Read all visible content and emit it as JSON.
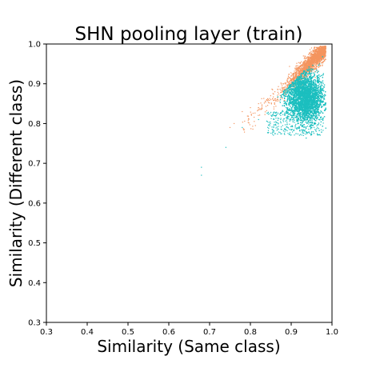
{
  "chart_data": {
    "type": "scatter",
    "title": "SHN pooling layer  (train)",
    "xlabel": "Similarity (Same class)",
    "ylabel": "Similarity (Different class)",
    "xlim": [
      0.3,
      1.0
    ],
    "ylim": [
      0.3,
      1.0
    ],
    "xticks": [
      "0.3",
      "0.4",
      "0.5",
      "0.6",
      "0.7",
      "0.8",
      "0.9",
      "1.0"
    ],
    "yticks": [
      "0.3",
      "0.4",
      "0.5",
      "0.6",
      "0.7",
      "0.8",
      "0.9",
      "1.0"
    ],
    "grid": false,
    "colors": {
      "series_orange": "#f4955f",
      "series_cyan": "#1cbfbf"
    },
    "series": [
      {
        "color": "#f4955f",
        "cluster": {
          "description_points": "dense band along diagonal y≈x from about x=0.84 to x=0.98; outliers near (0.75,0.79),(0.77,0.80),(0.78,0.83),(0.80,0.84)",
          "x_range": [
            0.74,
            0.99
          ],
          "y_range": [
            0.78,
            0.99
          ]
        },
        "values": [
          [
            0.75,
            0.79
          ],
          [
            0.76,
            0.8
          ],
          [
            0.78,
            0.83
          ],
          [
            0.8,
            0.84
          ],
          [
            0.82,
            0.85
          ],
          [
            0.84,
            0.86
          ],
          [
            0.86,
            0.88
          ],
          [
            0.88,
            0.9
          ],
          [
            0.9,
            0.92
          ],
          [
            0.92,
            0.94
          ],
          [
            0.94,
            0.96
          ],
          [
            0.96,
            0.97
          ],
          [
            0.97,
            0.98
          ],
          [
            0.95,
            0.99
          ],
          [
            0.93,
            0.97
          ]
        ]
      },
      {
        "color": "#1cbfbf",
        "cluster": {
          "description_points": "dense cloud below diagonal centred near (0.93,0.86); outliers near (0.68,0.68),(0.74,0.74)",
          "x_range": [
            0.67,
            0.99
          ],
          "y_range": [
            0.67,
            0.97
          ]
        },
        "values": [
          [
            0.68,
            0.67
          ],
          [
            0.68,
            0.69
          ],
          [
            0.74,
            0.74
          ],
          [
            0.78,
            0.79
          ],
          [
            0.82,
            0.81
          ],
          [
            0.86,
            0.82
          ],
          [
            0.88,
            0.83
          ],
          [
            0.9,
            0.85
          ],
          [
            0.92,
            0.86
          ],
          [
            0.94,
            0.88
          ],
          [
            0.95,
            0.9
          ],
          [
            0.96,
            0.93
          ],
          [
            0.97,
            0.95
          ],
          [
            0.93,
            0.77
          ],
          [
            0.96,
            0.8
          ]
        ]
      }
    ]
  }
}
